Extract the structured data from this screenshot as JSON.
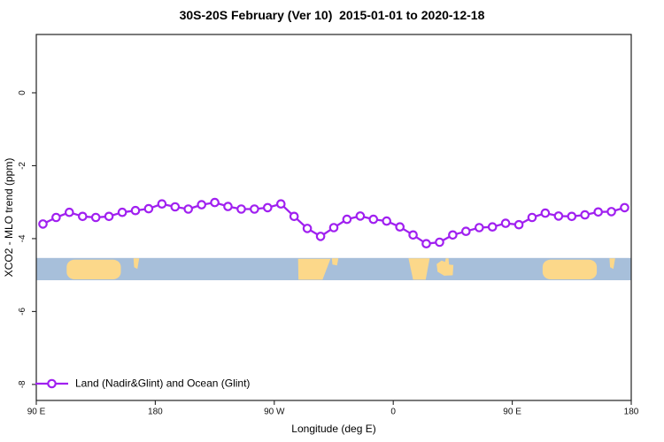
{
  "chart_data": {
    "type": "line",
    "title": "30S-20S February (Ver 10)  2015-01-01 to 2020-12-18",
    "xlabel": "Longitude (deg E)",
    "ylabel": "XCO2 - MLO trend (ppm)",
    "grid": false,
    "xlim": [
      90,
      540
    ],
    "ylim": [
      -8.44,
      1.6
    ],
    "x_axis_note": "longitude wraps eastward from 90E around the globe to 180",
    "xticks": [
      {
        "value": 90,
        "label": "90 E"
      },
      {
        "value": 180,
        "label": "180"
      },
      {
        "value": 270,
        "label": "90 W"
      },
      {
        "value": 360,
        "label": "0"
      },
      {
        "value": 450,
        "label": "90 E"
      },
      {
        "value": 540,
        "label": "180"
      }
    ],
    "yticks": [
      {
        "value": 0,
        "label": "0"
      },
      {
        "value": -2,
        "label": "-2"
      },
      {
        "value": -4,
        "label": "-4"
      },
      {
        "value": -6,
        "label": "-6"
      },
      {
        "value": -8,
        "label": "-8"
      }
    ],
    "series": [
      {
        "name": "Land (Nadir&Glint) and Ocean (Glint)",
        "color": "#A020F0",
        "marker": "open-circle",
        "x": [
          95,
          105,
          115,
          125,
          135,
          145,
          155,
          165,
          175,
          185,
          195,
          205,
          215,
          225,
          235,
          245,
          255,
          265,
          275,
          285,
          295,
          305,
          315,
          325,
          335,
          345,
          355,
          365,
          375,
          385,
          395,
          405,
          415,
          425,
          435,
          445,
          455,
          465,
          475,
          485,
          495,
          505,
          515,
          525,
          535
        ],
        "y": [
          -3.6,
          -3.42,
          -3.28,
          -3.39,
          -3.42,
          -3.39,
          -3.28,
          -3.23,
          -3.18,
          -3.05,
          -3.13,
          -3.19,
          -3.07,
          -3.01,
          -3.12,
          -3.19,
          -3.19,
          -3.15,
          -3.05,
          -3.39,
          -3.72,
          -3.94,
          -3.7,
          -3.47,
          -3.38,
          -3.47,
          -3.52,
          -3.68,
          -3.9,
          -4.14,
          -4.1,
          -3.9,
          -3.8,
          -3.7,
          -3.68,
          -3.58,
          -3.62,
          -3.42,
          -3.3,
          -3.38,
          -3.39,
          -3.35,
          -3.27,
          -3.26,
          -3.15
        ]
      }
    ],
    "legend": {
      "position": "bottom-left",
      "entries": [
        {
          "label": "Land (Nadir&Glint) and Ocean (Glint)",
          "color": "#A020F0",
          "marker": "open-circle"
        }
      ]
    },
    "map_strip": {
      "description": "30S-20S latitude band world-map ribbon",
      "y_top": -4.53,
      "y_bottom": -5.14,
      "ocean_color": "#a7bfda",
      "land_color": "#fcd88a",
      "land_patches": [
        {
          "name": "australia",
          "shape": "rounded",
          "lon": [
            113,
            154
          ]
        },
        {
          "name": "new-caledonia",
          "shape": "polygon",
          "points": [
            [
              163.5,
              0.02
            ],
            [
              167.8,
              0.02
            ],
            [
              166.5,
              0.5
            ],
            [
              164.0,
              0.42
            ]
          ]
        },
        {
          "name": "south-america",
          "shape": "polygon",
          "points": [
            [
              288.0,
              0.04
            ],
            [
              312.5,
              0.04
            ],
            [
              306.5,
              0.98
            ],
            [
              288.3,
              0.98
            ]
          ]
        },
        {
          "name": "brazil-east-coast",
          "shape": "polygon",
          "points": [
            [
              313.5,
              0.02
            ],
            [
              318.5,
              0.02
            ],
            [
              317.5,
              0.34
            ],
            [
              314.0,
              0.3
            ]
          ]
        },
        {
          "name": "southern-africa",
          "shape": "polygon",
          "points": [
            [
              371.5,
              0.02
            ],
            [
              387.5,
              0.02
            ],
            [
              384.5,
              0.98
            ],
            [
              375.0,
              0.98
            ]
          ]
        },
        {
          "name": "madagascar-mozambique",
          "shape": "polygon",
          "points": [
            [
              392.8,
              0.28
            ],
            [
              396.5,
              0.12
            ],
            [
              399.2,
              0.18
            ],
            [
              399.8,
              0.02
            ],
            [
              401.8,
              0.02
            ],
            [
              402.2,
              0.3
            ],
            [
              405.5,
              0.32
            ],
            [
              405.0,
              0.78
            ],
            [
              398.5,
              0.8
            ],
            [
              393.5,
              0.62
            ]
          ]
        },
        {
          "name": "australia-wrap",
          "shape": "rounded",
          "lon": [
            473,
            514
          ]
        },
        {
          "name": "new-caledonia-wrap",
          "shape": "polygon",
          "points": [
            [
              523.5,
              0.02
            ],
            [
              527.8,
              0.02
            ],
            [
              526.5,
              0.5
            ],
            [
              524.0,
              0.42
            ]
          ]
        }
      ]
    }
  }
}
